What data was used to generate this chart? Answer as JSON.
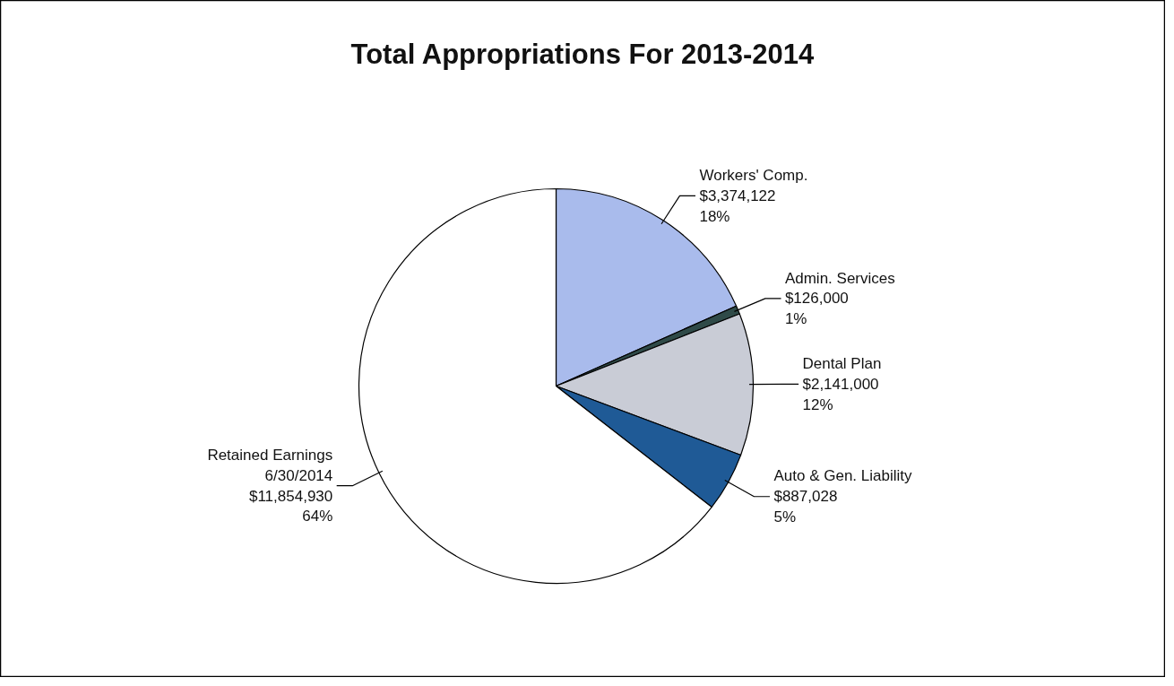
{
  "chart_data": {
    "type": "pie",
    "title": "Total Appropriations For 2013-2014",
    "categories": [
      "Workers' Comp.",
      "Admin. Services",
      "Dental Plan",
      "Auto & Gen. Liability",
      "Retained Earnings\n6/30/2014"
    ],
    "values": [
      3374122,
      126000,
      2141000,
      887028,
      11854930
    ],
    "value_labels": [
      "$3,374,122\n18%",
      "$126,000\n1%",
      "$2,141,000\n12%",
      "$887,028\n5%",
      "$11,854,930\n64%"
    ],
    "colors": [
      "#a9bbec",
      "#2f4a48",
      "#c9ccd6",
      "#1f5a96",
      "#ffffff"
    ]
  }
}
